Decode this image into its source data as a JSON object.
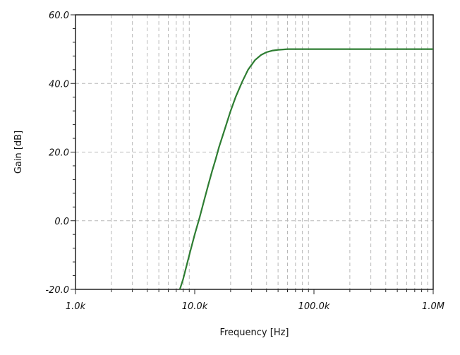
{
  "chart_data": {
    "type": "line",
    "xlabel": "Frequency  [Hz]",
    "ylabel": "Gain  [dB]",
    "xscale": "log",
    "xlim": [
      1000,
      1000000
    ],
    "ylim": [
      -20,
      60
    ],
    "grid": true,
    "x_ticks": [
      {
        "value": 1000,
        "label": "1.0k"
      },
      {
        "value": 10000,
        "label": "10.0k"
      },
      {
        "value": 100000,
        "label": "100.0k"
      },
      {
        "value": 1000000,
        "label": "1.0M"
      }
    ],
    "y_ticks": [
      {
        "value": -20,
        "label": "-20.0"
      },
      {
        "value": 0,
        "label": "0.0"
      },
      {
        "value": 20,
        "label": "20.0"
      },
      {
        "value": 40,
        "label": "40.0"
      },
      {
        "value": 60,
        "label": "60.0"
      }
    ],
    "series": [
      {
        "color": "#2e7d32",
        "x": [
          7500,
          8000,
          9000,
          10000,
          11000,
          12000,
          13000,
          14000,
          15000,
          16000,
          18000,
          20000,
          22000,
          25000,
          28000,
          32000,
          36000,
          40000,
          45000,
          50000,
          55000,
          60000,
          70000,
          80000,
          100000,
          200000,
          500000,
          1000000
        ],
        "y": [
          -20,
          -17,
          -10,
          -4,
          1,
          6,
          10.5,
          14.5,
          18,
          21.5,
          27,
          32,
          36,
          40.5,
          44,
          46.8,
          48.3,
          49.1,
          49.6,
          49.8,
          49.9,
          50,
          50,
          50,
          50,
          50,
          50,
          50
        ]
      }
    ]
  }
}
